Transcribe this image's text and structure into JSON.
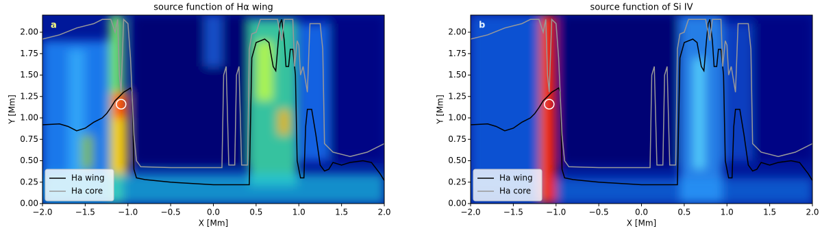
{
  "chart_data": [
    {
      "type": "line",
      "title": "source function of Hα wing",
      "annotation": "a",
      "xlabel": "X [Mm]",
      "ylabel": "Y [Mm]",
      "xlim": [
        -2,
        2
      ],
      "ylim": [
        0,
        2.2
      ],
      "xticks": [
        {
          "value": -2,
          "label": "−2.0"
        },
        {
          "value": -1.5,
          "label": "−1.5"
        },
        {
          "value": -1,
          "label": "−1.0"
        },
        {
          "value": -0.5,
          "label": "−0.5"
        },
        {
          "value": 0,
          "label": "0.0"
        },
        {
          "value": 0.5,
          "label": "0.5"
        },
        {
          "value": 1,
          "label": "1.0"
        },
        {
          "value": 1.5,
          "label": "1.5"
        },
        {
          "value": 2,
          "label": "2.0"
        }
      ],
      "yticks": [
        {
          "value": 0,
          "label": "0.00"
        },
        {
          "value": 0.25,
          "label": "0.25"
        },
        {
          "value": 0.5,
          "label": "0.50"
        },
        {
          "value": 0.75,
          "label": "0.75"
        },
        {
          "value": 1,
          "label": "1.00"
        },
        {
          "value": 1.25,
          "label": "1.25"
        },
        {
          "value": 1.5,
          "label": "1.50"
        },
        {
          "value": 1.75,
          "label": "1.75"
        },
        {
          "value": 2,
          "label": "2.00"
        }
      ],
      "legend": "lower left",
      "points": [
        {
          "x": -1.08,
          "y": 1.16,
          "color": "#ffffff"
        }
      ],
      "series": [
        {
          "name": "Ha wing",
          "color": "#000000",
          "x": [
            -2,
            -1.8,
            -1.7,
            -1.6,
            -1.5,
            -1.4,
            -1.3,
            -1.25,
            -1.2,
            -1.15,
            -1.1,
            -1.05,
            -1,
            -0.97,
            -0.95,
            -0.93,
            -0.9,
            -0.8,
            -0.5,
            0,
            0.3,
            0.42,
            0.45,
            0.5,
            0.6,
            0.65,
            0.7,
            0.73,
            0.76,
            0.78,
            0.8,
            0.83,
            0.85,
            0.88,
            0.9,
            0.93,
            0.96,
            0.98,
            1.02,
            1.06,
            1.08,
            1.1,
            1.15,
            1.2,
            1.25,
            1.3,
            1.35,
            1.4,
            1.5,
            1.6,
            1.75,
            1.85,
            1.95,
            2
          ],
          "values": [
            0.92,
            0.93,
            0.9,
            0.85,
            0.88,
            0.95,
            1,
            1.05,
            1.12,
            1.2,
            1.25,
            1.3,
            1.33,
            1.35,
            1.3,
            0.4,
            0.3,
            0.28,
            0.25,
            0.22,
            0.22,
            0.22,
            1.7,
            1.88,
            1.92,
            1.88,
            1.6,
            1.55,
            1.9,
            2.1,
            2.15,
            1.9,
            1.6,
            1.6,
            1.8,
            1.8,
            1.5,
            0.5,
            0.3,
            0.3,
            0.9,
            1.1,
            1.1,
            0.8,
            0.45,
            0.38,
            0.4,
            0.48,
            0.45,
            0.48,
            0.5,
            0.48,
            0.35,
            0.27
          ]
        },
        {
          "name": "Ha core",
          "color": "#999999",
          "x": [
            -2,
            -1.8,
            -1.6,
            -1.4,
            -1.3,
            -1.2,
            -1.15,
            -1.12,
            -1.1,
            -1.08,
            -1.05,
            -1,
            -0.97,
            -0.93,
            -0.9,
            -0.85,
            -0.5,
            0,
            0.1,
            0.12,
            0.15,
            0.18,
            0.25,
            0.27,
            0.3,
            0.33,
            0.4,
            0.42,
            0.45,
            0.5,
            0.55,
            0.75,
            0.8,
            0.83,
            0.93,
            0.95,
            0.98,
            1,
            1.02,
            1.05,
            1.1,
            1.13,
            1.25,
            1.28,
            1.3,
            1.4,
            1.6,
            1.8,
            1.9,
            2
          ],
          "values": [
            1.92,
            1.97,
            2.05,
            2.1,
            2.15,
            2.15,
            2,
            2.15,
            1.5,
            1.3,
            2.15,
            2.1,
            1.7,
            0.8,
            0.5,
            0.43,
            0.42,
            0.42,
            0.42,
            1.5,
            1.6,
            0.45,
            0.45,
            1.5,
            1.6,
            0.45,
            0.45,
            1.8,
            1.98,
            2,
            2.15,
            2.15,
            1.9,
            2.15,
            2.15,
            1.6,
            1.9,
            1.85,
            1.5,
            1.6,
            1.3,
            2.1,
            2.1,
            1.8,
            0.7,
            0.6,
            0.55,
            0.6,
            0.65,
            0.7
          ]
        }
      ]
    },
    {
      "type": "line",
      "title": "source function of Si IV",
      "annotation": "b",
      "xlabel": "X [Mm]",
      "ylabel": "Y [Mm]",
      "xlim": [
        -2,
        2
      ],
      "ylim": [
        0,
        2.2
      ],
      "xticks": [
        {
          "value": -2,
          "label": "−2.0"
        },
        {
          "value": -1.5,
          "label": "−1.5"
        },
        {
          "value": -1,
          "label": "−1.0"
        },
        {
          "value": -0.5,
          "label": "−0.5"
        },
        {
          "value": 0,
          "label": "0.0"
        },
        {
          "value": 0.5,
          "label": "0.5"
        },
        {
          "value": 1,
          "label": "1.0"
        },
        {
          "value": 1.5,
          "label": "1.5"
        },
        {
          "value": 2,
          "label": "2.0"
        }
      ],
      "yticks": [
        {
          "value": 0,
          "label": "0.00"
        },
        {
          "value": 0.25,
          "label": "0.25"
        },
        {
          "value": 0.5,
          "label": "0.50"
        },
        {
          "value": 0.75,
          "label": "0.75"
        },
        {
          "value": 1,
          "label": "1.00"
        },
        {
          "value": 1.25,
          "label": "1.25"
        },
        {
          "value": 1.5,
          "label": "1.50"
        },
        {
          "value": 1.75,
          "label": "1.75"
        },
        {
          "value": 2,
          "label": "2.00"
        }
      ],
      "legend": "lower left",
      "points": [
        {
          "x": -1.08,
          "y": 1.16,
          "color": "#ffffff"
        }
      ],
      "series": [
        {
          "name": "Ha wing",
          "color": "#000000",
          "x": [
            -2,
            -1.8,
            -1.7,
            -1.6,
            -1.5,
            -1.4,
            -1.3,
            -1.25,
            -1.2,
            -1.15,
            -1.1,
            -1.05,
            -1,
            -0.97,
            -0.95,
            -0.93,
            -0.9,
            -0.8,
            -0.5,
            0,
            0.3,
            0.42,
            0.45,
            0.5,
            0.6,
            0.65,
            0.7,
            0.73,
            0.76,
            0.78,
            0.8,
            0.83,
            0.85,
            0.88,
            0.9,
            0.93,
            0.96,
            0.98,
            1.02,
            1.06,
            1.08,
            1.1,
            1.15,
            1.2,
            1.25,
            1.3,
            1.35,
            1.4,
            1.5,
            1.6,
            1.75,
            1.85,
            1.95,
            2
          ],
          "values": [
            0.92,
            0.93,
            0.9,
            0.85,
            0.88,
            0.95,
            1,
            1.05,
            1.12,
            1.2,
            1.25,
            1.3,
            1.33,
            1.35,
            1.3,
            0.4,
            0.3,
            0.28,
            0.25,
            0.22,
            0.22,
            0.22,
            1.7,
            1.88,
            1.92,
            1.88,
            1.6,
            1.55,
            1.9,
            2.1,
            2.15,
            1.9,
            1.6,
            1.6,
            1.8,
            1.8,
            1.5,
            0.5,
            0.3,
            0.3,
            0.9,
            1.1,
            1.1,
            0.8,
            0.45,
            0.38,
            0.4,
            0.48,
            0.45,
            0.48,
            0.5,
            0.48,
            0.35,
            0.27
          ]
        },
        {
          "name": "Ha core",
          "color": "#999999",
          "x": [
            -2,
            -1.8,
            -1.6,
            -1.4,
            -1.3,
            -1.2,
            -1.15,
            -1.12,
            -1.1,
            -1.08,
            -1.05,
            -1,
            -0.97,
            -0.93,
            -0.9,
            -0.85,
            -0.5,
            0,
            0.1,
            0.12,
            0.15,
            0.18,
            0.25,
            0.27,
            0.3,
            0.33,
            0.4,
            0.42,
            0.45,
            0.5,
            0.55,
            0.75,
            0.8,
            0.83,
            0.93,
            0.95,
            0.98,
            1,
            1.02,
            1.05,
            1.1,
            1.13,
            1.25,
            1.28,
            1.3,
            1.4,
            1.6,
            1.8,
            1.9,
            2
          ],
          "values": [
            1.92,
            1.97,
            2.05,
            2.1,
            2.15,
            2.15,
            2,
            2.15,
            1.5,
            1.3,
            2.15,
            2.1,
            1.7,
            0.8,
            0.5,
            0.43,
            0.42,
            0.42,
            0.42,
            1.5,
            1.6,
            0.45,
            0.45,
            1.5,
            1.6,
            0.45,
            0.45,
            1.8,
            1.98,
            2,
            2.15,
            2.15,
            1.9,
            2.15,
            2.15,
            1.6,
            1.9,
            1.85,
            1.5,
            1.6,
            1.3,
            2.1,
            2.1,
            1.8,
            0.7,
            0.6,
            0.55,
            0.6,
            0.65,
            0.7
          ]
        }
      ]
    }
  ]
}
